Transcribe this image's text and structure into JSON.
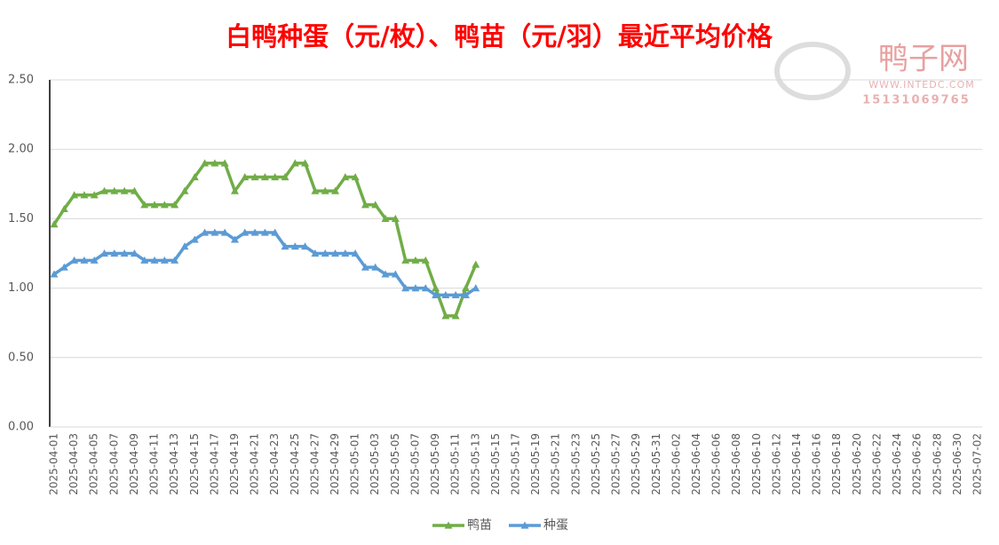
{
  "chart_data": {
    "type": "line",
    "title": "白鸭种蛋（元/枚）、鸭苗（元/羽）最近平均价格",
    "categories": [
      "2025-04-01",
      null,
      "2025-04-03",
      null,
      "2025-04-05",
      null,
      "2025-04-07",
      null,
      "2025-04-09",
      null,
      "2025-04-11",
      null,
      "2025-04-13",
      null,
      "2025-04-15",
      null,
      "2025-04-17",
      null,
      "2025-04-19",
      null,
      "2025-04-21",
      null,
      "2025-04-23",
      null,
      "2025-04-25",
      null,
      "2025-04-27",
      null,
      "2025-04-29",
      null,
      "2025-05-01",
      null,
      "2025-05-03",
      null,
      "2025-05-05",
      null,
      "2025-05-07",
      null,
      "2025-05-09",
      null,
      "2025-05-11",
      null,
      "2025-05-13",
      null,
      "2025-05-15",
      null,
      "2025-05-17",
      null,
      "2025-05-19",
      null,
      "2025-05-21",
      null,
      "2025-05-23",
      null,
      "2025-05-25",
      null,
      "2025-05-27",
      null,
      "2025-05-29",
      null,
      "2025-05-31",
      null,
      "2025-06-02",
      null,
      "2025-06-04",
      null,
      "2025-06-06",
      null,
      "2025-06-08",
      null,
      "2025-06-10",
      null,
      "2025-06-12",
      null,
      "2025-06-14",
      null,
      "2025-06-16",
      null,
      "2025-06-18",
      null,
      "2025-06-20",
      null,
      "2025-06-22",
      null,
      "2025-06-24",
      null,
      "2025-06-26",
      null,
      "2025-06-28",
      null,
      "2025-06-30",
      null,
      "2025-07-02"
    ],
    "series": [
      {
        "name": "鸭苗",
        "color": "#70ad47",
        "values": [
          1.46,
          1.57,
          1.67,
          1.67,
          1.67,
          1.7,
          1.7,
          1.7,
          1.7,
          1.6,
          1.6,
          1.6,
          1.6,
          1.7,
          1.8,
          1.9,
          1.9,
          1.9,
          1.7,
          1.8,
          1.8,
          1.8,
          1.8,
          1.8,
          1.9,
          1.9,
          1.7,
          1.7,
          1.7,
          1.8,
          1.8,
          1.6,
          1.6,
          1.5,
          1.5,
          1.2,
          1.2,
          1.2,
          1.0,
          0.8,
          0.8,
          1.0,
          1.17,
          null,
          null,
          null,
          null,
          null,
          null,
          null,
          null,
          null,
          null,
          null,
          null,
          null,
          null,
          null,
          null,
          null,
          null,
          null,
          null,
          null,
          null,
          null,
          null,
          null,
          null,
          null,
          null,
          null,
          null,
          null,
          null,
          null,
          null,
          null,
          null,
          null,
          null,
          null,
          null,
          null,
          null,
          null,
          null,
          null,
          null,
          null,
          null,
          null,
          null
        ]
      },
      {
        "name": "种蛋",
        "color": "#5b9bd5",
        "values": [
          1.1,
          1.15,
          1.2,
          1.2,
          1.2,
          1.25,
          1.25,
          1.25,
          1.25,
          1.2,
          1.2,
          1.2,
          1.2,
          1.3,
          1.35,
          1.4,
          1.4,
          1.4,
          1.35,
          1.4,
          1.4,
          1.4,
          1.4,
          1.3,
          1.3,
          1.3,
          1.25,
          1.25,
          1.25,
          1.25,
          1.25,
          1.15,
          1.15,
          1.1,
          1.1,
          1.0,
          1.0,
          1.0,
          0.95,
          0.95,
          0.95,
          0.95,
          1.0,
          null,
          null,
          null,
          null,
          null,
          null,
          null,
          null,
          null,
          null,
          null,
          null,
          null,
          null,
          null,
          null,
          null,
          null,
          null,
          null,
          null,
          null,
          null,
          null,
          null,
          null,
          null,
          null,
          null,
          null,
          null,
          null,
          null,
          null,
          null,
          null,
          null,
          null,
          null,
          null,
          null,
          null,
          null,
          null,
          null,
          null,
          null,
          null,
          null,
          null
        ]
      }
    ],
    "ylim": [
      0,
      2.5
    ],
    "yticks": [
      {
        "value": 0,
        "label": "0.00"
      },
      {
        "value": 0.5,
        "label": "0.50"
      },
      {
        "value": 1,
        "label": "1.00"
      },
      {
        "value": 1.5,
        "label": "1.50"
      },
      {
        "value": 2,
        "label": "2.00"
      },
      {
        "value": 2.5,
        "label": "2.50"
      }
    ],
    "grid": true,
    "legend": "bottom"
  },
  "watermark": {
    "name": "鸭子网",
    "url": "WWW.INTEDC.COM",
    "phone": "15131069765"
  }
}
